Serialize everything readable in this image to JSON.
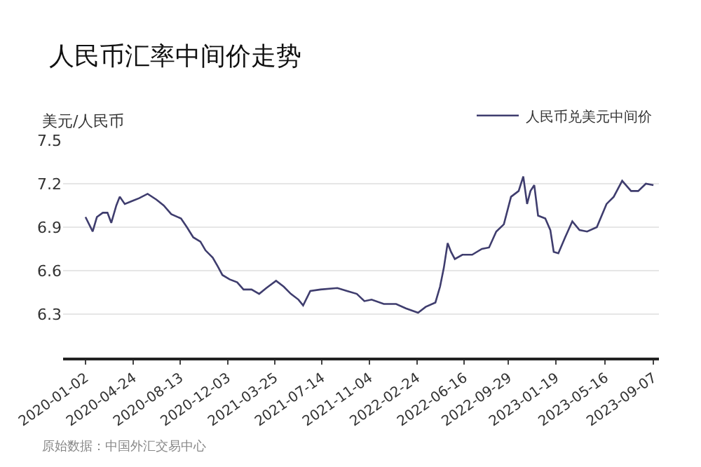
{
  "chart_data": {
    "type": "line",
    "title": "人民币汇率中间价走势",
    "ylabel": "美元/人民币",
    "x": [
      "2020-01-02",
      "2020-01-19",
      "2020-01-29",
      "2020-02-12",
      "2020-02-23",
      "2020-03-03",
      "2020-03-15",
      "2020-03-23",
      "2020-04-04",
      "2020-04-21",
      "2020-05-08",
      "2020-05-28",
      "2020-06-18",
      "2020-07-05",
      "2020-07-23",
      "2020-08-15",
      "2020-08-29",
      "2020-09-13",
      "2020-09-30",
      "2020-10-12",
      "2020-10-29",
      "2020-11-10",
      "2020-11-21",
      "2020-12-08",
      "2020-12-26",
      "2021-01-10",
      "2021-01-29",
      "2021-02-16",
      "2021-03-05",
      "2021-03-28",
      "2021-04-15",
      "2021-05-02",
      "2021-05-20",
      "2021-05-31",
      "2021-06-17",
      "2021-07-11",
      "2021-08-20",
      "2021-09-12",
      "2021-10-05",
      "2021-10-23",
      "2021-11-09",
      "2021-12-08",
      "2022-01-06",
      "2022-01-29",
      "2022-02-27",
      "2022-03-17",
      "2022-04-09",
      "2022-04-20",
      "2022-04-29",
      "2022-05-08",
      "2022-05-16",
      "2022-05-25",
      "2022-06-12",
      "2022-07-05",
      "2022-07-28",
      "2022-08-14",
      "2022-08-31",
      "2022-09-18",
      "2022-10-05",
      "2022-10-23",
      "2022-11-03",
      "2022-11-12",
      "2022-11-20",
      "2022-11-29",
      "2022-12-08",
      "2022-12-25",
      "2023-01-06",
      "2023-01-14",
      "2023-01-25",
      "2023-02-10",
      "2023-02-27",
      "2023-03-16",
      "2023-04-03",
      "2023-04-26",
      "2023-05-19",
      "2023-06-05",
      "2023-06-25",
      "2023-07-16",
      "2023-08-02",
      "2023-08-20",
      "2023-09-07"
    ],
    "series": [
      {
        "name": "人民币兑美元中间价",
        "color": "#3f3d6e",
        "values": [
          6.97,
          6.87,
          6.97,
          7.0,
          7.0,
          6.93,
          7.05,
          7.11,
          7.06,
          7.08,
          7.1,
          7.13,
          7.09,
          7.05,
          6.99,
          6.96,
          6.9,
          6.83,
          6.8,
          6.74,
          6.69,
          6.63,
          6.57,
          6.54,
          6.52,
          6.47,
          6.47,
          6.44,
          6.48,
          6.53,
          6.49,
          6.44,
          6.4,
          6.36,
          6.46,
          6.47,
          6.48,
          6.46,
          6.44,
          6.39,
          6.4,
          6.37,
          6.37,
          6.34,
          6.31,
          6.35,
          6.38,
          6.49,
          6.62,
          6.79,
          6.73,
          6.68,
          6.71,
          6.71,
          6.75,
          6.76,
          6.87,
          6.92,
          7.11,
          7.15,
          7.25,
          7.06,
          7.15,
          7.19,
          6.98,
          6.96,
          6.88,
          6.73,
          6.72,
          6.83,
          6.94,
          6.88,
          6.87,
          6.9,
          7.06,
          7.11,
          7.22,
          7.15,
          7.15,
          7.2,
          7.19
        ]
      }
    ],
    "xlim": [
      "2019-11-10",
      "2023-09-20"
    ],
    "xticks": [
      "2020-01-02",
      "2020-04-24",
      "2020-08-13",
      "2020-12-03",
      "2021-03-25",
      "2021-07-14",
      "2021-11-04",
      "2022-02-24",
      "2022-06-16",
      "2022-09-29",
      "2023-01-19",
      "2023-05-16",
      "2023-09-07"
    ],
    "ylim": [
      6.0,
      7.5
    ],
    "yticks": [
      6.3,
      6.6,
      6.9,
      7.2,
      7.5
    ],
    "grid": "y",
    "legend": "top right",
    "marker": "none",
    "line_style": "solid",
    "annotations": [
      "原始数据：中国外汇交易中心"
    ]
  }
}
